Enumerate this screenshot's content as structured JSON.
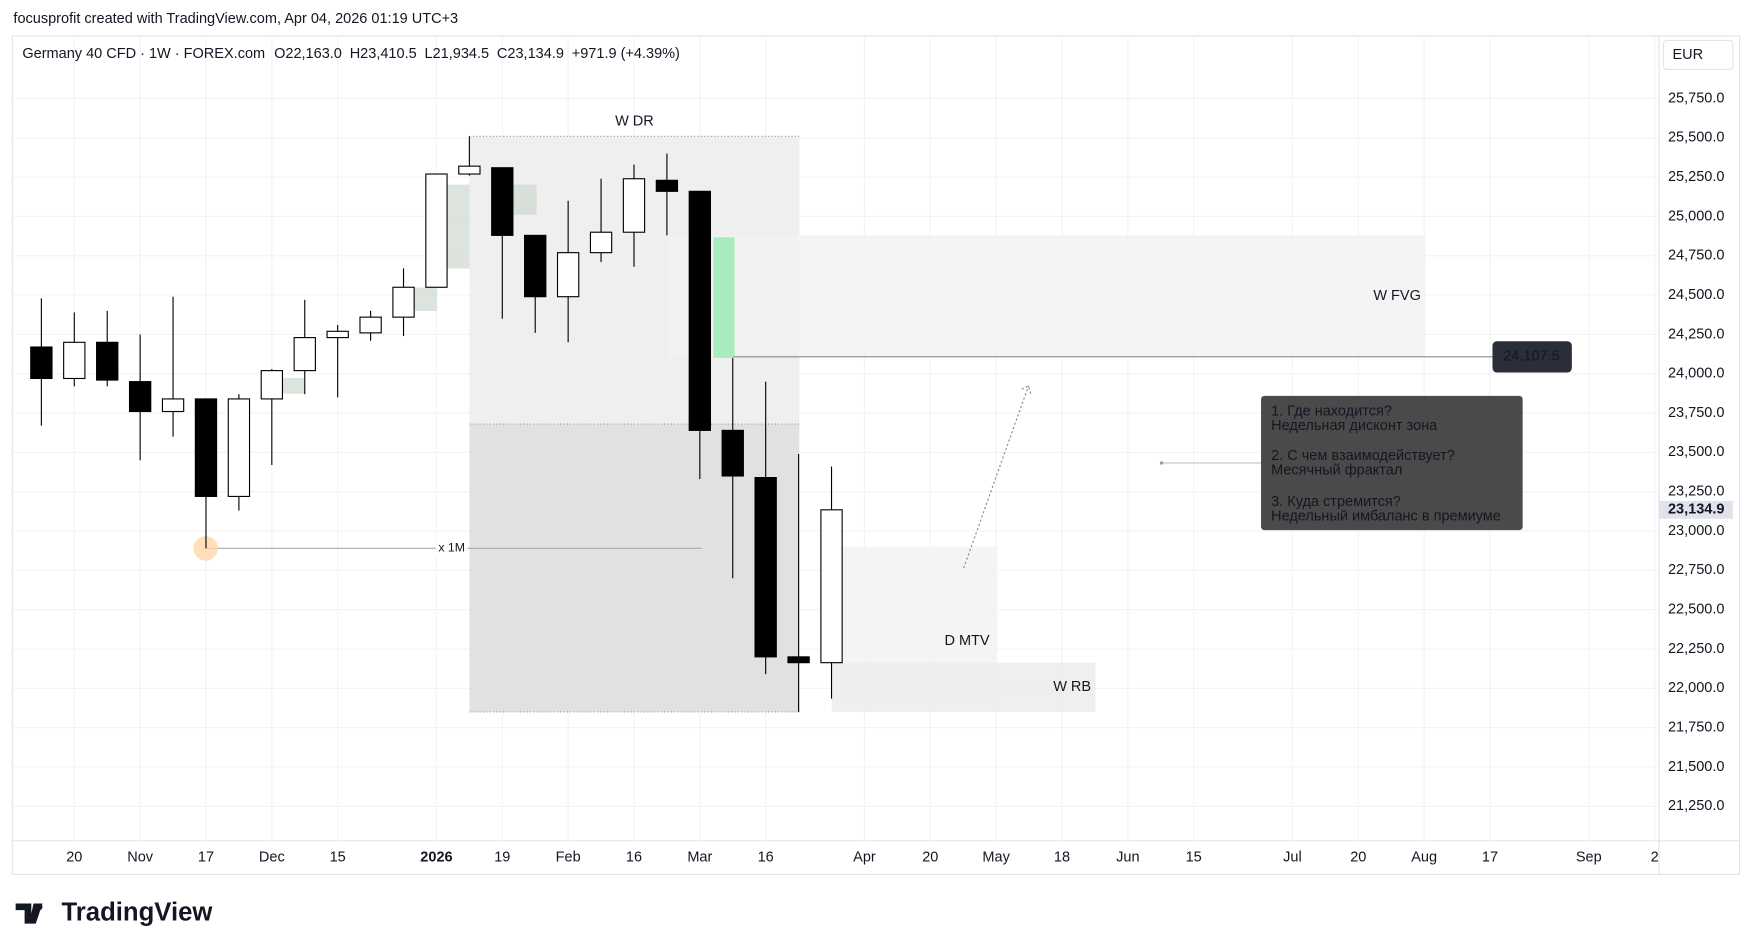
{
  "header": {
    "attribution": "focusprofit created with TradingView.com, Apr 04, 2026 01:19 UTC+3"
  },
  "chart_data": {
    "type": "candlestick",
    "title": "Germany 40 CFD · 1W · FOREX.com",
    "ohlc_legend": [
      "O22,163.0",
      "H23,410.5",
      "L21,934.5",
      "C23,134.9",
      "+971.9 (+4.39%)"
    ],
    "currency": "EUR",
    "categories": [
      null,
      "20",
      null,
      "Nov",
      null,
      "17",
      null,
      "Dec",
      null,
      "15",
      null,
      null,
      "2026",
      null,
      "19",
      null,
      "Feb",
      null,
      "16",
      null,
      "Mar",
      null,
      "16",
      null,
      null,
      "Apr",
      null,
      "20",
      null,
      "May",
      null,
      "18",
      null,
      "Jun",
      null,
      "15",
      null,
      null,
      "Jul",
      null,
      "20",
      null,
      "Aug",
      null,
      "17",
      null,
      null,
      "Sep",
      null,
      "2"
    ],
    "open": [
      24170,
      23970,
      24200,
      23950,
      23760,
      23840,
      23220,
      23840,
      24020,
      24230,
      24260,
      24360,
      24550,
      25270,
      25310,
      24880,
      24490,
      24770,
      24900,
      25230,
      25160,
      23640,
      23340,
      22200,
      22163,
      null,
      null,
      null,
      null,
      null,
      null,
      null,
      null,
      null,
      null,
      null,
      null,
      null,
      null,
      null,
      null,
      null,
      null,
      null,
      null,
      null,
      null,
      null,
      null,
      null
    ],
    "high": [
      24480,
      24390,
      24400,
      24250,
      24490,
      23840,
      23870,
      24030,
      24470,
      24310,
      24400,
      24670,
      25270,
      25510,
      25310,
      24880,
      25100,
      25240,
      25330,
      25400,
      25160,
      24100,
      23950,
      23490,
      23410.5,
      null,
      null,
      null,
      null,
      null,
      null,
      null,
      null,
      null,
      null,
      null,
      null,
      null,
      null,
      null,
      null,
      null,
      null,
      null,
      null,
      null,
      null,
      null,
      null,
      null
    ],
    "low": [
      23670,
      23920,
      23920,
      23450,
      23600,
      22890,
      23130,
      23420,
      23870,
      23850,
      24210,
      24240,
      24550,
      25260,
      24350,
      24260,
      24200,
      24710,
      24680,
      24880,
      23330,
      22700,
      22090,
      21850,
      21934.5,
      null,
      null,
      null,
      null,
      null,
      null,
      null,
      null,
      null,
      null,
      null,
      null,
      null,
      null,
      null,
      null,
      null,
      null,
      null,
      null,
      null,
      null,
      null,
      null,
      null
    ],
    "close": [
      23970,
      24200,
      23960,
      23760,
      23840,
      23220,
      23840,
      24020,
      24230,
      24270,
      24360,
      24550,
      25270,
      25320,
      24880,
      24490,
      24770,
      24900,
      25240,
      25160,
      23640,
      23350,
      22200,
      22163,
      23134.9,
      null,
      null,
      null,
      null,
      null,
      null,
      null,
      null,
      null,
      null,
      null,
      null,
      null,
      null,
      null,
      null,
      null,
      null,
      null,
      null,
      null,
      null,
      null,
      null,
      null
    ],
    "up_color": "#ffffff",
    "down_color": "#000000",
    "wick_color": "#000000",
    "ylim": [
      21030,
      26148
    ],
    "yticks": [
      {
        "value": 21250,
        "label": "21,250.0"
      },
      {
        "value": 21500,
        "label": "21,500.0"
      },
      {
        "value": 21750,
        "label": "21,750.0"
      },
      {
        "value": 22000,
        "label": "22,000.0"
      },
      {
        "value": 22250,
        "label": "22,250.0"
      },
      {
        "value": 22500,
        "label": "22,500.0"
      },
      {
        "value": 22750,
        "label": "22,750.0"
      },
      {
        "value": 23000,
        "label": "23,000.0"
      },
      {
        "value": 23250,
        "label": "23,250.0"
      },
      {
        "value": 23500,
        "label": "23,500.0"
      },
      {
        "value": 23750,
        "label": "23,750.0"
      },
      {
        "value": 24000,
        "label": "24,000.0"
      },
      {
        "value": 24250,
        "label": "24,250.0"
      },
      {
        "value": 24500,
        "label": "24,500.0"
      },
      {
        "value": 24750,
        "label": "24,750.0"
      },
      {
        "value": 25000,
        "label": "25,000.0"
      },
      {
        "value": 25250,
        "label": "25,250.0"
      },
      {
        "value": 25500,
        "label": "25,500.0"
      },
      {
        "value": 25750,
        "label": "25,750.0"
      }
    ],
    "grid": true,
    "last_price_label": "23,134.9",
    "price_line": {
      "value": 24107.5,
      "label": "24,107.5"
    },
    "zones": [
      {
        "label": "W DR",
        "top": 25510,
        "mid": 23680,
        "bottom": 21850
      },
      {
        "label": "W FVG",
        "top": 24880,
        "bottom": 24107.5
      },
      {
        "label": "D MTV",
        "top": 22900,
        "bottom": 21930
      },
      {
        "label": "W RB",
        "top": 22163,
        "bottom": 21850
      }
    ],
    "level": {
      "label": "x 1M",
      "value": 22890
    },
    "note": [
      "1. Где находится?",
      "Недельная дисконт зона",
      "2. С чем взаимодействует?",
      "Месячный фрактал",
      "3. Куда стремится?",
      "Недельный имбаланс в премиуме"
    ]
  },
  "brand": "TradingView"
}
